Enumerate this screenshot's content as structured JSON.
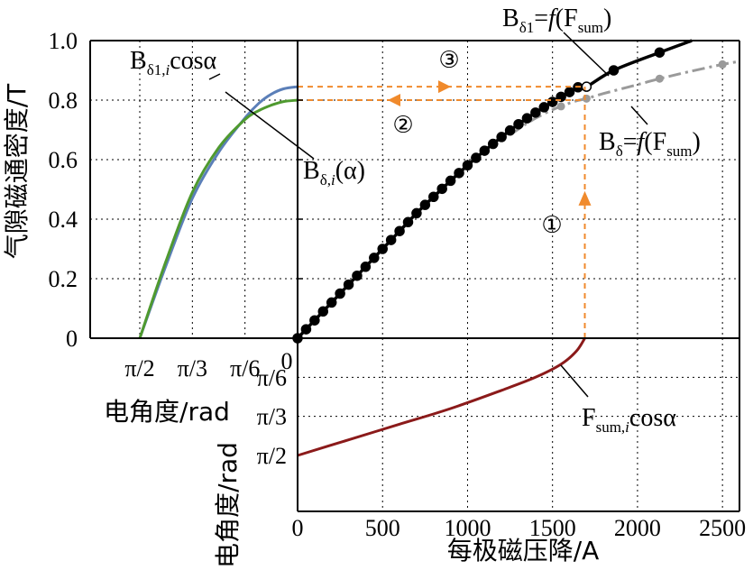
{
  "chart_data": {
    "type": "line",
    "main": {
      "x_ticks": [
        "0",
        "500",
        "1000",
        "1500",
        "2000",
        "2500"
      ],
      "y_ticks": [
        "0",
        "0.2",
        "0.4",
        "0.6",
        "0.8",
        "1.0"
      ],
      "xlim": [
        0,
        2600
      ],
      "ylim": [
        0,
        1.0
      ],
      "xlabel": "每极磁压降/A",
      "ylabel": "气隙磁通密度/T",
      "grid": true,
      "series": [
        {
          "name": "Bδ1=f(Fsum)",
          "color": "#000000",
          "style": "solid-markers",
          "x": [
            0,
            50,
            100,
            150,
            200,
            250,
            300,
            350,
            400,
            450,
            500,
            550,
            600,
            650,
            700,
            750,
            800,
            850,
            900,
            950,
            1000,
            1050,
            1100,
            1150,
            1200,
            1250,
            1300,
            1350,
            1400,
            1450,
            1500,
            1550,
            1600,
            1650,
            1700,
            1860,
            2130,
            2320
          ],
          "y": [
            0.0,
            0.03,
            0.06,
            0.09,
            0.12,
            0.15,
            0.18,
            0.21,
            0.24,
            0.27,
            0.3,
            0.33,
            0.36,
            0.39,
            0.42,
            0.448,
            0.475,
            0.502,
            0.529,
            0.555,
            0.581,
            0.606,
            0.63,
            0.653,
            0.676,
            0.698,
            0.719,
            0.739,
            0.758,
            0.776,
            0.794,
            0.811,
            0.827,
            0.843,
            0.845,
            0.9,
            0.96,
            1.0
          ]
        },
        {
          "name": "Bδ=f(Fsum)",
          "color": "#9a9a9a",
          "style": "dashdot-markers",
          "x": [
            1250,
            1300,
            1350,
            1400,
            1450,
            1500,
            1550,
            1600,
            1650,
            1700,
            1800,
            2000,
            2130,
            2300,
            2500,
            2600
          ],
          "y": [
            0.683,
            0.703,
            0.722,
            0.739,
            0.754,
            0.768,
            0.779,
            0.79,
            0.799,
            0.805,
            0.822,
            0.852,
            0.872,
            0.895,
            0.92,
            0.93
          ],
          "marker_indices": [
            6,
            9,
            12,
            14
          ]
        }
      ]
    },
    "left": {
      "x_ticks": [
        "π/2",
        "π/3",
        "π/6",
        "0"
      ],
      "y_range": [
        0,
        1.0
      ],
      "xlabel": "电角度/rad",
      "series": [
        {
          "name": "Bδ1,icosα",
          "color": "#5b7fb8",
          "angle_deg": [
            90,
            75,
            60,
            45,
            30,
            22,
            15,
            8,
            0
          ],
          "y": [
            0.0,
            0.245,
            0.47,
            0.625,
            0.74,
            0.79,
            0.82,
            0.838,
            0.845
          ]
        },
        {
          "name": "Bδ,i(α)",
          "color": "#4f9a2f",
          "angle_deg": [
            90,
            75,
            60,
            45,
            30,
            22,
            15,
            8,
            0
          ],
          "y": [
            0.0,
            0.26,
            0.49,
            0.64,
            0.735,
            0.765,
            0.783,
            0.795,
            0.8
          ]
        }
      ]
    },
    "bottom": {
      "y_ticks": [
        "π/6",
        "π/3",
        "π/2"
      ],
      "ylabel": "电角度/rad",
      "series": [
        {
          "name": "Fsum,icosα",
          "color": "#8b1a1a",
          "x": [
            0,
            300,
            600,
            900,
            1200,
            1400,
            1550,
            1640,
            1690
          ],
          "angle_deg": [
            90,
            78,
            66,
            54,
            40,
            30,
            20,
            10,
            0
          ]
        }
      ]
    },
    "guides": {
      "color": "#f08a2c",
      "vertical_x": 1690,
      "y_high": 0.845,
      "y_low": 0.8
    },
    "annotations": {
      "step1": "①",
      "step2": "②",
      "step3": "③",
      "label_bd1": {
        "base": "B",
        "sub": "δ1",
        "eq": "=",
        "f": "f",
        "arg_base": "(F",
        "arg_sub": "sum",
        "close": ")"
      },
      "label_bd": {
        "base": "B",
        "sub": "δ",
        "eq": "=",
        "f": "f",
        "arg_base": "(F",
        "arg_sub": "sum",
        "close": ")"
      },
      "label_bcos": {
        "base": "B",
        "sub": "δ1,",
        "sub_i": "i",
        "tail": "cosα"
      },
      "label_bdi": {
        "base": "B",
        "sub": "δ,",
        "sub_i": "i",
        "tail": "(α)"
      },
      "label_fcos": {
        "base": "F",
        "sub": "sum,",
        "sub_i": "i",
        "tail": "cosα"
      }
    }
  }
}
